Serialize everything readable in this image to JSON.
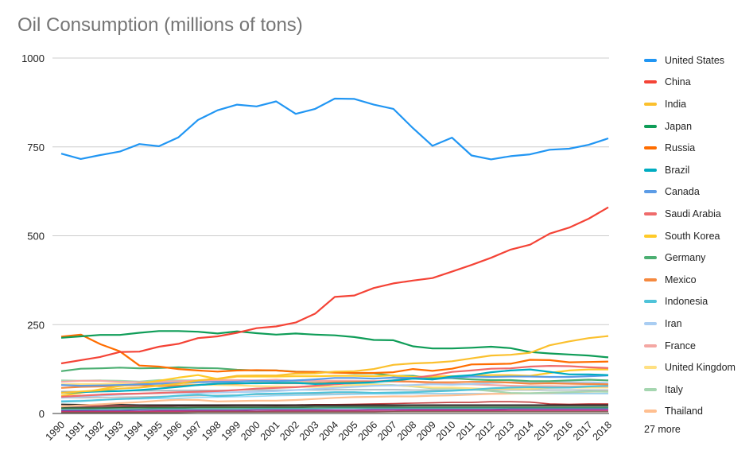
{
  "chart_data": {
    "type": "line",
    "title": "Oil Consumption (millions of tons)",
    "xlabel": "",
    "ylabel": "",
    "ylim": [
      0,
      1000
    ],
    "y_ticks": [
      0,
      250,
      500,
      750,
      1000
    ],
    "grid": true,
    "legend_position": "right",
    "legend_more": "27 more",
    "x": [
      "1990",
      "1991",
      "1992",
      "1993",
      "1994",
      "1995",
      "1996",
      "1997",
      "1998",
      "1999",
      "2000",
      "2001",
      "2002",
      "2003",
      "2004",
      "2005",
      "2006",
      "2007",
      "2008",
      "2009",
      "2010",
      "2011",
      "2012",
      "2013",
      "2014",
      "2015",
      "2016",
      "2017",
      "2018"
    ],
    "series": [
      {
        "name": "United States",
        "color": "#2196f3",
        "values": [
          731,
          716,
          727,
          737,
          758,
          752,
          777,
          826,
          853,
          869,
          864,
          878,
          843,
          857,
          886,
          885,
          869,
          857,
          803,
          753,
          776,
          726,
          715,
          724,
          729,
          742,
          745,
          756,
          774
        ]
      },
      {
        "name": "China",
        "color": "#f44336",
        "values": [
          141,
          150,
          159,
          173,
          174,
          188,
          196,
          212,
          217,
          227,
          240,
          245,
          256,
          281,
          328,
          332,
          353,
          366,
          374,
          381,
          399,
          418,
          438,
          461,
          475,
          506,
          523,
          548,
          580
        ]
      },
      {
        "name": "India",
        "color": "#fbc02d",
        "values": [
          58,
          62,
          65,
          70,
          73,
          78,
          84,
          93,
          98,
          106,
          107,
          107,
          112,
          113,
          118,
          119,
          125,
          137,
          141,
          143,
          147,
          155,
          163,
          165,
          171,
          192,
          203,
          212,
          218
        ]
      },
      {
        "name": "Japan",
        "color": "#0f9d58",
        "values": [
          213,
          217,
          221,
          221,
          227,
          232,
          232,
          230,
          225,
          231,
          226,
          222,
          225,
          222,
          220,
          215,
          207,
          206,
          189,
          183,
          183,
          185,
          188,
          184,
          173,
          169,
          166,
          163,
          158
        ]
      },
      {
        "name": "Russia",
        "color": "#ff6d00",
        "values": [
          216,
          222,
          195,
          175,
          135,
          132,
          125,
          121,
          118,
          121,
          122,
          121,
          117,
          117,
          115,
          114,
          114,
          116,
          125,
          120,
          126,
          138,
          139,
          140,
          151,
          150,
          144,
          145,
          146
        ]
      },
      {
        "name": "Brazil",
        "color": "#00acc1",
        "values": [
          58,
          60,
          62,
          63,
          66,
          70,
          75,
          80,
          84,
          85,
          85,
          86,
          86,
          83,
          85,
          86,
          88,
          93,
          98,
          96,
          104,
          108,
          116,
          121,
          124,
          117,
          110,
          110,
          108
        ]
      },
      {
        "name": "Canada",
        "color": "#5c9ce6",
        "values": [
          80,
          78,
          79,
          80,
          82,
          84,
          86,
          88,
          89,
          90,
          92,
          91,
          93,
          96,
          100,
          100,
          98,
          101,
          100,
          96,
          101,
          104,
          103,
          104,
          104,
          103,
          103,
          105,
          107
        ]
      },
      {
        "name": "Saudi Arabia",
        "color": "#ef6b6b",
        "values": [
          47,
          50,
          53,
          55,
          56,
          58,
          60,
          61,
          63,
          66,
          70,
          72,
          74,
          78,
          82,
          86,
          90,
          93,
          100,
          107,
          117,
          121,
          126,
          127,
          132,
          134,
          133,
          130,
          128
        ]
      },
      {
        "name": "South Korea",
        "color": "#ffca28",
        "values": [
          50,
          58,
          68,
          77,
          84,
          92,
          101,
          108,
          97,
          104,
          104,
          104,
          105,
          105,
          106,
          106,
          105,
          107,
          103,
          104,
          105,
          106,
          108,
          108,
          106,
          114,
          121,
          124,
          124
        ]
      },
      {
        "name": "Germany",
        "color": "#4caf72",
        "values": [
          119,
          126,
          127,
          129,
          127,
          128,
          130,
          128,
          127,
          123,
          121,
          121,
          118,
          117,
          116,
          113,
          113,
          106,
          106,
          99,
          99,
          96,
          94,
          94,
          91,
          91,
          93,
          95,
          93
        ]
      },
      {
        "name": "Mexico",
        "color": "#f5893f",
        "values": [
          72,
          75,
          76,
          78,
          80,
          77,
          78,
          80,
          84,
          84,
          86,
          85,
          85,
          85,
          88,
          89,
          90,
          91,
          90,
          88,
          88,
          89,
          89,
          87,
          84,
          85,
          84,
          83,
          82
        ]
      },
      {
        "name": "Indonesia",
        "color": "#4fc3d9",
        "values": [
          33,
          35,
          38,
          41,
          43,
          46,
          50,
          53,
          49,
          51,
          55,
          56,
          57,
          58,
          60,
          60,
          58,
          59,
          60,
          62,
          64,
          67,
          71,
          73,
          74,
          73,
          73,
          76,
          78
        ]
      },
      {
        "name": "Iran",
        "color": "#a9cdf2",
        "values": [
          44,
          47,
          50,
          53,
          56,
          57,
          58,
          58,
          59,
          60,
          61,
          63,
          66,
          69,
          72,
          75,
          78,
          79,
          80,
          82,
          81,
          83,
          86,
          88,
          89,
          87,
          88,
          88,
          86
        ]
      },
      {
        "name": "France",
        "color": "#f4a7a3",
        "values": [
          89,
          92,
          92,
          89,
          88,
          89,
          91,
          92,
          94,
          94,
          93,
          95,
          92,
          92,
          92,
          92,
          91,
          90,
          89,
          85,
          83,
          82,
          80,
          78,
          77,
          77,
          76,
          77,
          76
        ]
      },
      {
        "name": "United Kingdom",
        "color": "#ffe082",
        "values": [
          82,
          83,
          83,
          84,
          82,
          81,
          83,
          81,
          80,
          79,
          77,
          76,
          75,
          75,
          76,
          80,
          81,
          79,
          77,
          73,
          73,
          71,
          69,
          69,
          69,
          72,
          73,
          73,
          73
        ]
      },
      {
        "name": "Italy",
        "color": "#a5d6b0",
        "values": [
          93,
          92,
          93,
          92,
          90,
          94,
          93,
          93,
          93,
          92,
          90,
          89,
          89,
          88,
          84,
          84,
          82,
          80,
          76,
          71,
          71,
          68,
          63,
          58,
          57,
          59,
          60,
          62,
          61
        ]
      },
      {
        "name": "Thailand",
        "color": "#ffbf90",
        "values": [
          20,
          23,
          26,
          29,
          32,
          36,
          39,
          38,
          34,
          35,
          36,
          36,
          38,
          41,
          44,
          46,
          47,
          48,
          48,
          50,
          51,
          53,
          55,
          56,
          57,
          58,
          60,
          61,
          62
        ]
      }
    ],
    "background_series": [
      {
        "color": "#b71c1c",
        "values": [
          21,
          21,
          21,
          21,
          20,
          21,
          22,
          23,
          23,
          24,
          24,
          23,
          24,
          25,
          25,
          26,
          27,
          28,
          29,
          30,
          31,
          31,
          33,
          33,
          32,
          27,
          26,
          27,
          27
        ]
      },
      {
        "color": "#000000",
        "values": [
          26,
          25,
          25,
          25,
          24,
          24,
          24,
          24,
          24,
          24,
          24,
          24,
          24,
          24,
          24,
          24,
          24,
          24,
          24,
          24,
          24,
          24,
          24,
          24,
          24,
          24,
          24,
          24,
          24
        ]
      },
      {
        "color": "#444444",
        "values": [
          17,
          17,
          18,
          18,
          19,
          19,
          20,
          20,
          20,
          20,
          20,
          20,
          20,
          21,
          21,
          21,
          21,
          21,
          22,
          22,
          22,
          22,
          22,
          22,
          22,
          22,
          22,
          22,
          22
        ]
      },
      {
        "color": "#1b5e20",
        "values": [
          15,
          15,
          15,
          16,
          16,
          16,
          16,
          17,
          17,
          17,
          17,
          17,
          17,
          18,
          18,
          18,
          18,
          18,
          18,
          18,
          18,
          18,
          18,
          18,
          18,
          18,
          18,
          18,
          18
        ]
      },
      {
        "color": "#26a69a",
        "values": [
          11,
          11,
          12,
          12,
          12,
          13,
          13,
          13,
          13,
          13,
          14,
          14,
          14,
          14,
          15,
          15,
          15,
          15,
          15,
          15,
          15,
          15,
          15,
          15,
          15,
          15,
          15,
          15,
          15
        ]
      },
      {
        "color": "#6a1b9a",
        "values": [
          8,
          8,
          8,
          8,
          9,
          9,
          9,
          9,
          9,
          9,
          10,
          10,
          10,
          10,
          10,
          10,
          11,
          11,
          11,
          11,
          11,
          11,
          11,
          12,
          12,
          12,
          12,
          12,
          12
        ]
      },
      {
        "color": "#c2185b",
        "values": [
          5,
          5,
          5,
          5,
          5,
          6,
          6,
          6,
          6,
          6,
          6,
          7,
          7,
          7,
          7,
          7,
          7,
          7,
          8,
          8,
          8,
          8,
          8,
          8,
          8,
          8,
          8,
          8,
          8
        ]
      },
      {
        "color": "#795548",
        "values": [
          3,
          3,
          3,
          3,
          3,
          3,
          3,
          4,
          4,
          4,
          4,
          4,
          4,
          4,
          4,
          4,
          4,
          5,
          5,
          5,
          5,
          5,
          5,
          5,
          5,
          5,
          5,
          5,
          5
        ]
      },
      {
        "color": "#90a4ae",
        "values": [
          62,
          62,
          63,
          64,
          64,
          64,
          65,
          65,
          65,
          66,
          66,
          66,
          66,
          66,
          67,
          67,
          67,
          67,
          66,
          66,
          66,
          66,
          66,
          66,
          66,
          66,
          66,
          66,
          66
        ]
      },
      {
        "color": "#bcaaa4",
        "values": [
          44,
          44,
          45,
          46,
          47,
          48,
          49,
          50,
          51,
          52,
          53,
          54,
          55,
          55,
          55,
          56,
          56,
          56,
          56,
          56,
          56,
          56,
          56,
          56,
          56,
          56,
          56,
          56,
          56
        ]
      },
      {
        "color": "#81d4fa",
        "values": [
          36,
          37,
          38,
          40,
          41,
          42,
          43,
          45,
          46,
          47,
          48,
          50,
          51,
          52,
          53,
          54,
          55,
          55,
          56,
          56,
          56,
          56,
          56,
          56,
          56,
          56,
          56,
          56,
          56
        ]
      }
    ]
  }
}
